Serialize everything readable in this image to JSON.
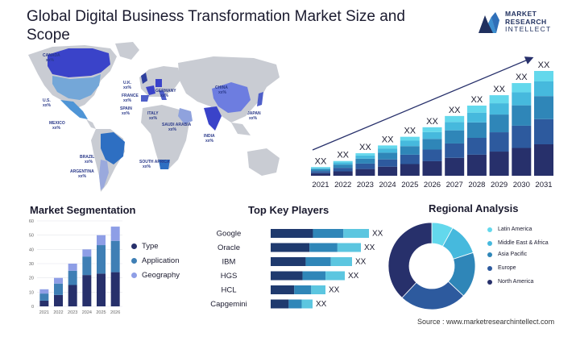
{
  "title": "Global Digital Business Transformation Market Size and Scope",
  "logo": {
    "line1": "MARKET",
    "line2": "RESEARCH",
    "line3": "INTELLECT"
  },
  "colors": {
    "navy": "#27306b",
    "dark_blue": "#2d5a9e",
    "mid_blue": "#2f86b8",
    "light_blue": "#46b9dd",
    "cyan": "#63d8ec",
    "lavender": "#8e9ee6",
    "map_gray": "#c9ccd3"
  },
  "map": {
    "labels": [
      {
        "name": "CANADA",
        "value": "xx%"
      },
      {
        "name": "U.S.",
        "value": "xx%"
      },
      {
        "name": "MEXICO",
        "value": "xx%"
      },
      {
        "name": "BRAZIL",
        "value": "xx%"
      },
      {
        "name": "ARGENTINA",
        "value": "xx%"
      },
      {
        "name": "U.K.",
        "value": "xx%"
      },
      {
        "name": "FRANCE",
        "value": "xx%"
      },
      {
        "name": "SPAIN",
        "value": "xx%"
      },
      {
        "name": "GERMANY",
        "value": "xx%"
      },
      {
        "name": "ITALY",
        "value": "xx%"
      },
      {
        "name": "SAUDI ARABIA",
        "value": "xx%"
      },
      {
        "name": "SOUTH AFRICA",
        "value": "xx%"
      },
      {
        "name": "CHINA",
        "value": "xx%"
      },
      {
        "name": "INDIA",
        "value": "xx%"
      },
      {
        "name": "JAPAN",
        "value": "xx%"
      }
    ]
  },
  "sections": {
    "segmentation": "Market Segmentation",
    "players": "Top Key Players",
    "regional": "Regional Analysis"
  },
  "source": "Source : www.marketresearchintellect.com",
  "chart_data": [
    {
      "type": "bar",
      "stacked": true,
      "categories": [
        "2021",
        "2022",
        "2023",
        "2024",
        "2025",
        "2026",
        "2027",
        "2028",
        "2029",
        "2030",
        "2031"
      ],
      "totals": [
        10,
        17,
        26,
        35,
        45,
        56,
        69,
        81,
        93,
        107,
        121
      ],
      "segment_fractions": [
        0.3,
        0.24,
        0.22,
        0.14,
        0.1
      ],
      "segment_colors": [
        "#27306b",
        "#2d5a9e",
        "#2f86b8",
        "#46b9dd",
        "#63d8ec"
      ],
      "data_labels": [
        "XX",
        "XX",
        "XX",
        "XX",
        "XX",
        "XX",
        "XX",
        "XX",
        "XX",
        "XX",
        "XX"
      ],
      "trend_arrow": true
    },
    {
      "type": "bar",
      "stacked": true,
      "categories": [
        "2021",
        "2022",
        "2023",
        "2024",
        "2025",
        "2026"
      ],
      "yticks": [
        0,
        10,
        20,
        30,
        40,
        50,
        60
      ],
      "ylim": [
        0,
        60
      ],
      "series": [
        {
          "name": "Type",
          "values": [
            4,
            8,
            15,
            22,
            23,
            24
          ],
          "color": "#27306b"
        },
        {
          "name": "Application",
          "values": [
            5,
            8,
            10,
            13,
            20,
            22
          ],
          "color": "#3f7fb5"
        },
        {
          "name": "Geography",
          "values": [
            3,
            4,
            5,
            5,
            7,
            10
          ],
          "color": "#8e9ee6"
        }
      ],
      "grid": true,
      "legend": "right"
    },
    {
      "type": "bar",
      "orientation": "horizontal",
      "categories": [
        "Google",
        "Oracle",
        "IBM",
        "HGS",
        "HCL",
        "Capgemini"
      ],
      "totals": [
        122,
        112,
        101,
        92,
        68,
        52
      ],
      "segment_fractions": [
        0.43,
        0.31,
        0.26
      ],
      "segment_colors": [
        "#1f3a6e",
        "#2f86b8",
        "#5cc6e0"
      ],
      "data_labels": [
        "XX",
        "XX",
        "XX",
        "XX",
        "XX",
        "XX"
      ]
    },
    {
      "type": "pie",
      "donut": true,
      "labels": [
        "Latin America",
        "Middle East & Africa",
        "Asia Pacific",
        "Europe",
        "North America"
      ],
      "values": [
        8,
        12,
        17,
        25,
        38
      ],
      "colors": [
        "#63d8ec",
        "#46b9dd",
        "#2f86b8",
        "#2d5a9e",
        "#27306b"
      ],
      "legend": "right"
    }
  ]
}
